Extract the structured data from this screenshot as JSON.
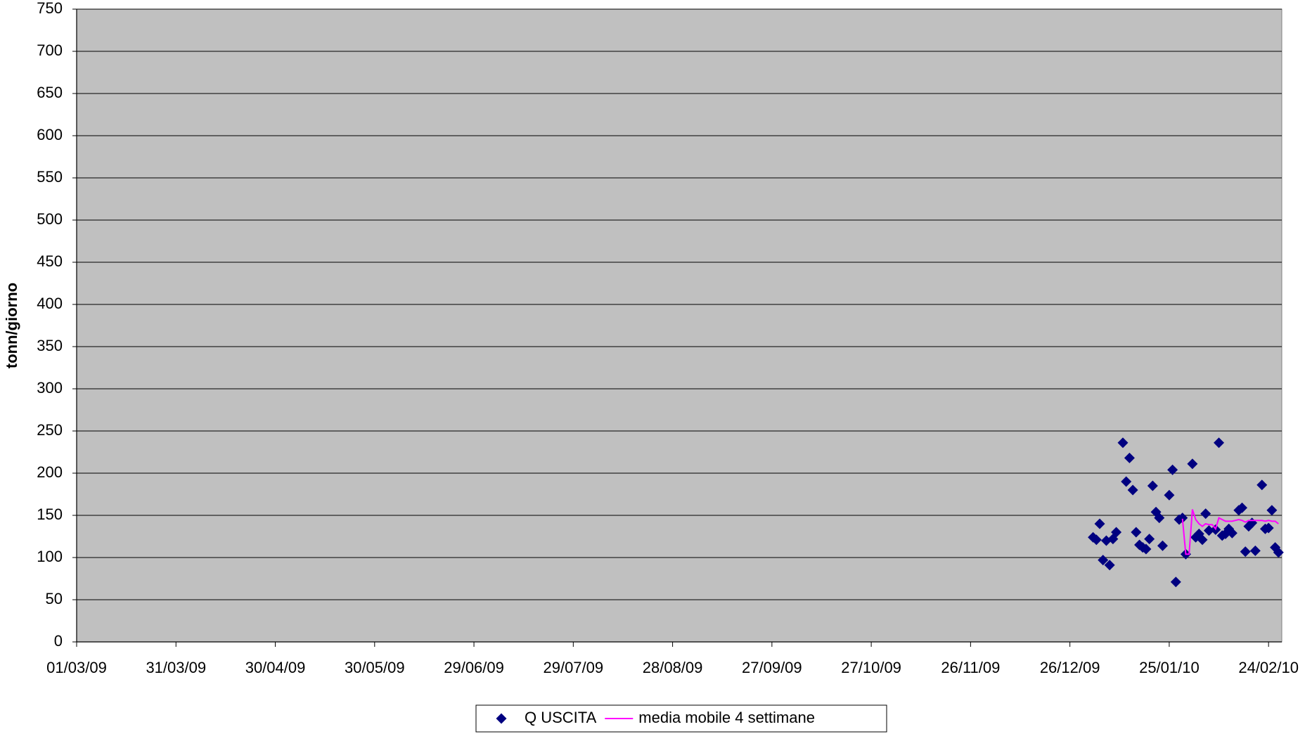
{
  "chart_data": {
    "type": "scatter",
    "y_label": "tonn/giorno",
    "xlim": [
      "2009-03-01",
      "2010-02-28"
    ],
    "xticks": [
      {
        "value": "2009-03-01",
        "label": "01/03/09"
      },
      {
        "value": "2009-03-31",
        "label": "31/03/09"
      },
      {
        "value": "2009-04-30",
        "label": "30/04/09"
      },
      {
        "value": "2009-05-30",
        "label": "30/05/09"
      },
      {
        "value": "2009-06-29",
        "label": "29/06/09"
      },
      {
        "value": "2009-07-29",
        "label": "29/07/09"
      },
      {
        "value": "2009-08-28",
        "label": "28/08/09"
      },
      {
        "value": "2009-09-27",
        "label": "27/09/09"
      },
      {
        "value": "2009-10-27",
        "label": "27/10/09"
      },
      {
        "value": "2009-11-26",
        "label": "26/11/09"
      },
      {
        "value": "2009-12-26",
        "label": "26/12/09"
      },
      {
        "value": "2010-01-25",
        "label": "25/01/10"
      },
      {
        "value": "2010-02-24",
        "label": "24/02/10"
      }
    ],
    "ylim": [
      0,
      750
    ],
    "yticks": [
      0,
      50,
      100,
      150,
      200,
      250,
      300,
      350,
      400,
      450,
      500,
      550,
      600,
      650,
      700,
      750
    ],
    "grid": true,
    "plot_background": "#c0c0c0",
    "legend": "bottom",
    "series": [
      {
        "name": "Q USCITA",
        "type": "scatter",
        "color": "#000080",
        "x": [
          "2010-01-02",
          "2010-01-03",
          "2010-01-04",
          "2010-01-05",
          "2010-01-06",
          "2010-01-07",
          "2010-01-08",
          "2010-01-09",
          "2010-01-11",
          "2010-01-12",
          "2010-01-13",
          "2010-01-14",
          "2010-01-15",
          "2010-01-16",
          "2010-01-17",
          "2010-01-18",
          "2010-01-19",
          "2010-01-20",
          "2010-01-21",
          "2010-01-22",
          "2010-01-23",
          "2010-01-25",
          "2010-01-26",
          "2010-01-27",
          "2010-01-28",
          "2010-01-29",
          "2010-01-30",
          "2010-02-01",
          "2010-02-02",
          "2010-02-03",
          "2010-02-04",
          "2010-02-05",
          "2010-02-06",
          "2010-02-08",
          "2010-02-09",
          "2010-02-10",
          "2010-02-11",
          "2010-02-12",
          "2010-02-13",
          "2010-02-15",
          "2010-02-16",
          "2010-02-17",
          "2010-02-18",
          "2010-02-19",
          "2010-02-20",
          "2010-02-22",
          "2010-02-23",
          "2010-02-24",
          "2010-02-25",
          "2010-02-26",
          "2010-02-27"
        ],
        "values": [
          124,
          121,
          140,
          97,
          120,
          91,
          122,
          130,
          236,
          190,
          218,
          180,
          130,
          115,
          112,
          110,
          122,
          185,
          154,
          147,
          114,
          174,
          204,
          71,
          145,
          147,
          104,
          211,
          124,
          128,
          121,
          152,
          132,
          133,
          236,
          126,
          128,
          134,
          129,
          156,
          159,
          107,
          137,
          141,
          108,
          186,
          134,
          135,
          156,
          112,
          106
        ]
      },
      {
        "name": "media mobile 4 settimane",
        "type": "line",
        "color": "#ff00ff",
        "x": [
          "2010-01-29",
          "2010-01-30",
          "2010-01-31",
          "2010-02-01",
          "2010-02-02",
          "2010-02-03",
          "2010-02-04",
          "2010-02-05",
          "2010-02-06",
          "2010-02-07",
          "2010-02-08",
          "2010-02-09",
          "2010-02-10",
          "2010-02-11",
          "2010-02-12",
          "2010-02-13",
          "2010-02-14",
          "2010-02-15",
          "2010-02-16",
          "2010-02-17",
          "2010-02-18",
          "2010-02-19",
          "2010-02-20",
          "2010-02-21",
          "2010-02-22",
          "2010-02-23",
          "2010-02-24",
          "2010-02-25",
          "2010-02-26",
          "2010-02-27"
        ],
        "values": [
          146,
          104,
          104,
          157,
          145,
          140,
          137,
          140,
          139,
          139,
          134,
          147,
          145,
          143,
          143,
          143,
          144,
          145,
          144,
          142,
          144,
          144,
          144,
          144,
          144,
          143,
          144,
          143,
          143,
          140
        ]
      }
    ]
  }
}
